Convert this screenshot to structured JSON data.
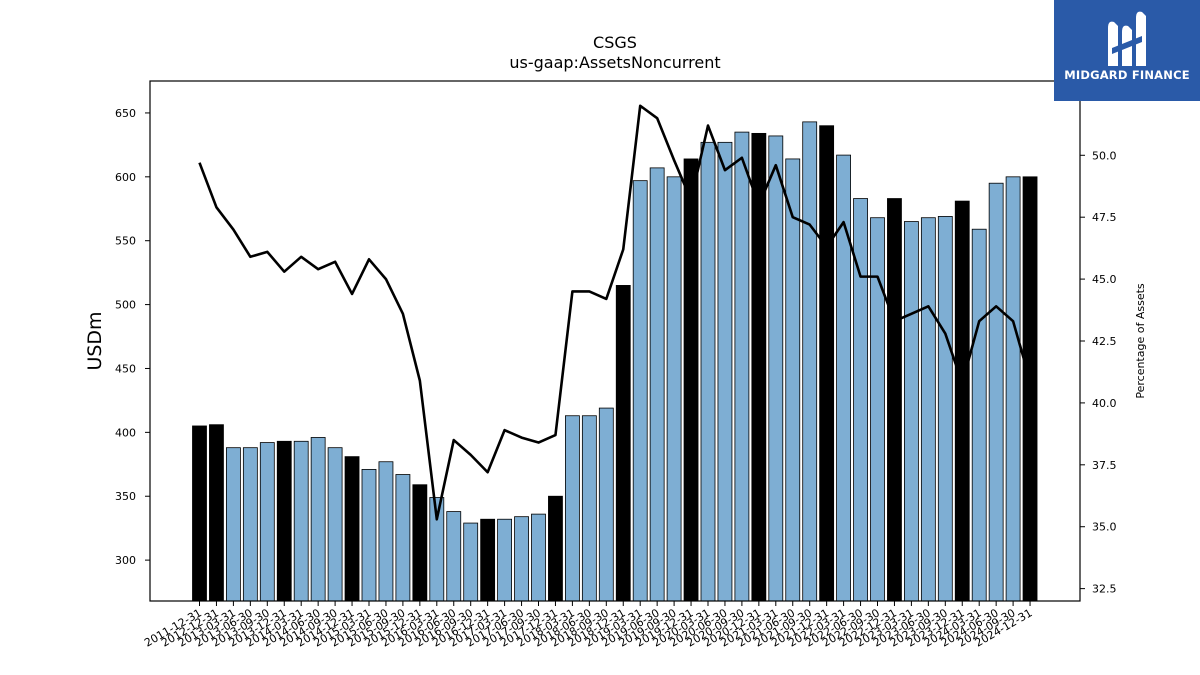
{
  "chart_data": {
    "type": "bar",
    "title": "CSGS",
    "subtitle": "us-gaap:AssetsNoncurrent",
    "ylabel": "USDm",
    "y2label": "Percentage of Assets",
    "ylim": [
      268,
      675
    ],
    "y2lim": [
      32.0,
      53.0
    ],
    "yticks": [
      300,
      350,
      400,
      450,
      500,
      550,
      600,
      650
    ],
    "y2ticks": [
      32.5,
      35.0,
      37.5,
      40.0,
      42.5,
      45.0,
      47.5,
      50.0
    ],
    "categories": [
      "2011-12-31",
      "2012-12-31",
      "2013-03-31",
      "2013-06-30",
      "2013-09-30",
      "2013-12-31",
      "2014-03-31",
      "2014-06-30",
      "2014-09-30",
      "2014-12-31",
      "2015-03-31",
      "2015-06-30",
      "2015-09-30",
      "2015-12-31",
      "2016-03-31",
      "2016-06-30",
      "2016-09-30",
      "2016-12-31",
      "2017-03-31",
      "2017-06-30",
      "2017-09-30",
      "2017-12-31",
      "2018-03-31",
      "2018-06-30",
      "2018-09-30",
      "2018-12-31",
      "2019-03-31",
      "2019-06-30",
      "2019-09-30",
      "2019-12-31",
      "2020-03-31",
      "2020-06-30",
      "2020-09-30",
      "2020-12-31",
      "2021-03-31",
      "2021-06-30",
      "2021-09-30",
      "2021-12-31",
      "2022-03-31",
      "2022-06-30",
      "2022-09-30",
      "2022-12-31",
      "2023-03-31",
      "2023-06-30",
      "2023-09-30",
      "2023-12-31",
      "2024-03-31",
      "2024-06-30",
      "2024-09-30",
      "2024-12-31"
    ],
    "series": [
      {
        "name": "",
        "type": "bar",
        "values": [
          405,
          406,
          388,
          388,
          392,
          393,
          393,
          396,
          388,
          381,
          371,
          377,
          367,
          359,
          349,
          338,
          329,
          332,
          332,
          334,
          336,
          350,
          413,
          413,
          419,
          515,
          597,
          607,
          600,
          614,
          627,
          627,
          635,
          634,
          632,
          614,
          643,
          640,
          617,
          583,
          568,
          583,
          565,
          568,
          569,
          581,
          559,
          595,
          600,
          600
        ],
        "annual_flags": [
          1,
          1,
          0,
          0,
          0,
          1,
          0,
          0,
          0,
          1,
          0,
          0,
          0,
          1,
          0,
          0,
          0,
          1,
          0,
          0,
          0,
          1,
          0,
          0,
          0,
          1,
          0,
          0,
          0,
          1,
          0,
          0,
          0,
          1,
          0,
          0,
          0,
          1,
          0,
          0,
          0,
          1,
          0,
          0,
          0,
          1,
          0,
          0,
          0,
          1
        ],
        "color": "#7eaed3",
        "annual_color": "#000000"
      },
      {
        "name": "",
        "type": "line",
        "axis": "right",
        "values": [
          49.7,
          47.9,
          47.0,
          45.9,
          46.1,
          45.3,
          45.9,
          45.4,
          45.7,
          44.4,
          45.8,
          45.0,
          43.6,
          40.9,
          35.3,
          38.5,
          37.9,
          37.2,
          38.9,
          38.6,
          38.4,
          38.7,
          44.5,
          44.5,
          44.2,
          46.2,
          52.0,
          51.5,
          49.8,
          48.2,
          51.2,
          49.4,
          49.9,
          48.0,
          49.6,
          47.5,
          47.2,
          46.3,
          47.3,
          45.1,
          45.1,
          43.3,
          43.6,
          43.9,
          42.8,
          40.8,
          43.3,
          43.9,
          43.3,
          40.9
        ],
        "color": "#000000"
      }
    ],
    "grid": false,
    "legend": "none"
  },
  "logo": {
    "text": "MIDGARD FINANCE",
    "color": "#2a5aa8"
  }
}
